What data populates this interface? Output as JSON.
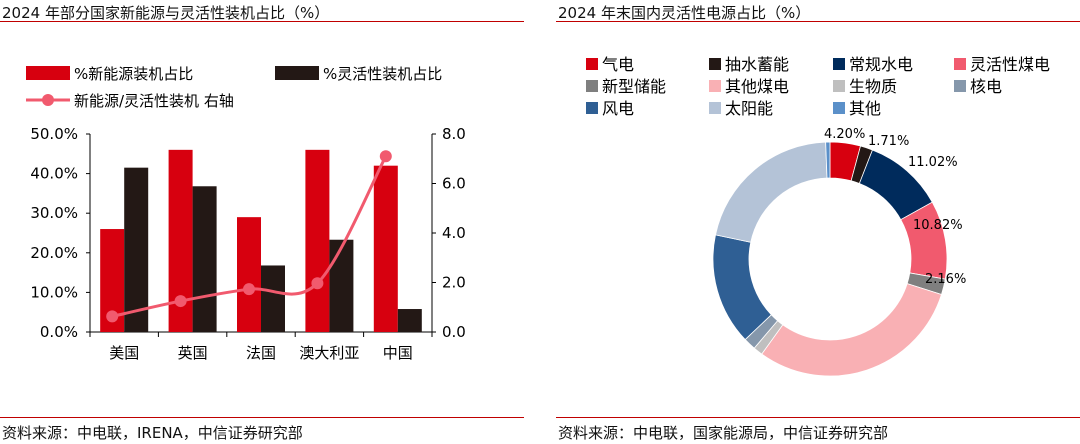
{
  "left": {
    "title": "2024 年部分国家新能源与灵活性装机占比（%）",
    "source": "资料来源：中电联，IRENA，中信证券研究部"
  },
  "right": {
    "title": "2024 年末国内灵活性电源占比（%）",
    "source": "资料来源：中电联，国家能源局，中信证券研究部"
  },
  "chart_data": [
    {
      "type": "bar",
      "title": "2024 年部分国家新能源与灵活性装机占比（%）",
      "categories": [
        "美国",
        "英国",
        "法国",
        "澳大利亚",
        "中国"
      ],
      "series": [
        {
          "name": "%新能源装机占比",
          "kind": "bar",
          "axis": "left",
          "color": "#d7000f",
          "values": [
            26.0,
            46.0,
            29.0,
            46.0,
            42.0
          ]
        },
        {
          "name": "%灵活性装机占比",
          "kind": "bar",
          "axis": "left",
          "color": "#231815",
          "values": [
            41.5,
            36.8,
            16.8,
            23.3,
            5.8
          ]
        },
        {
          "name": "新能源/灵活性装机 右轴",
          "kind": "line",
          "axis": "right",
          "color": "#f15a6e",
          "values": [
            0.63,
            1.25,
            1.73,
            1.97,
            7.1
          ]
        }
      ],
      "y_left": {
        "ylim": [
          0,
          50
        ],
        "ticks": [
          "0.0%",
          "10.0%",
          "20.0%",
          "30.0%",
          "40.0%",
          "50.0%"
        ]
      },
      "y_right": {
        "ylim": [
          0,
          8
        ],
        "ticks": [
          "0.0",
          "2.0",
          "4.0",
          "6.0",
          "8.0"
        ]
      },
      "legend": "top",
      "grid": false
    },
    {
      "type": "pie",
      "donut": true,
      "title": "2024 年末国内灵活性电源占比（%）",
      "slices": [
        {
          "label": "气电",
          "value": 4.2,
          "color": "#d7000f",
          "data_label": "4.20%"
        },
        {
          "label": "抽水蓄能",
          "value": 1.71,
          "color": "#231815",
          "data_label": "1.71%"
        },
        {
          "label": "常规水电",
          "value": 11.02,
          "color": "#002b5c",
          "data_label": "11.02%"
        },
        {
          "label": "灵活性煤电",
          "value": 10.82,
          "color": "#f15a6e",
          "data_label": "10.82%"
        },
        {
          "label": "新型储能",
          "value": 2.16,
          "color": "#7f7f7f",
          "data_label": "2.16%"
        },
        {
          "label": "其他煤电",
          "value": 30.0,
          "color": "#f9b0b4",
          "data_label": ""
        },
        {
          "label": "生物质",
          "value": 1.3,
          "color": "#bfbfbf",
          "data_label": ""
        },
        {
          "label": "核电",
          "value": 1.7,
          "color": "#8597ab",
          "data_label": ""
        },
        {
          "label": "风电",
          "value": 15.4,
          "color": "#2f5f94",
          "data_label": ""
        },
        {
          "label": "太阳能",
          "value": 21.1,
          "color": "#b4c3d7",
          "data_label": ""
        },
        {
          "label": "其他",
          "value": 0.59,
          "color": "#5b90c9",
          "data_label": ""
        }
      ],
      "legend": "top"
    }
  ]
}
